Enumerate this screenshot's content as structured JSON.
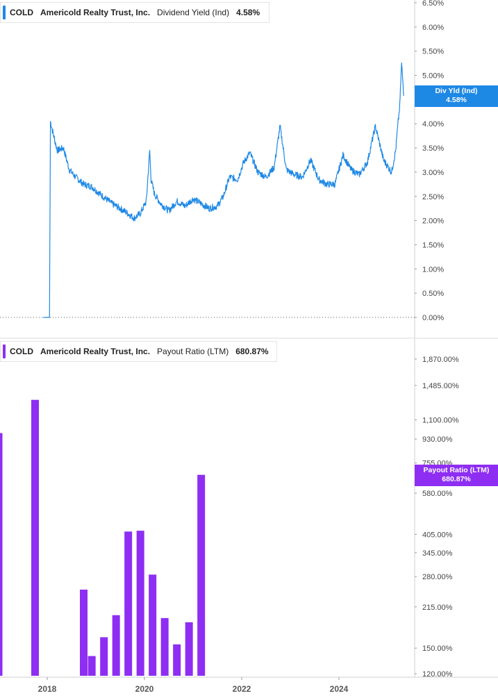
{
  "top_legend": {
    "ticker": "COLD",
    "company": "Americold Realty Trust, Inc.",
    "metric": "Dividend Yield (Ind)",
    "value": "4.58%",
    "color": "#1e88e5"
  },
  "bottom_legend": {
    "ticker": "COLD",
    "company": "Americold Realty Trust, Inc.",
    "metric": "Payout Ratio (LTM)",
    "value": "680.87%",
    "color": "#8e2ef2"
  },
  "top_badge": {
    "line1": "Div Yld (Ind)",
    "line2": "4.58%"
  },
  "bottom_badge": {
    "line1": "Payout Ratio (LTM)",
    "line2": "680.87%"
  },
  "chart_data": [
    {
      "type": "line",
      "series": [
        {
          "name": "Dividend Yield (Ind)",
          "x": [
            "2017-12-01",
            "2018-01-10",
            "2018-01-18",
            "2018-01-25",
            "2018-02-15",
            "2018-03-15",
            "2018-05-01",
            "2018-06-15",
            "2018-08-01",
            "2018-10-01",
            "2018-12-01",
            "2019-02-01",
            "2019-05-01",
            "2019-08-01",
            "2019-10-15",
            "2019-12-01",
            "2020-01-15",
            "2020-02-10",
            "2020-02-20",
            "2020-03-15",
            "2020-05-01",
            "2020-07-01",
            "2020-09-01",
            "2020-11-01",
            "2021-01-01",
            "2021-03-01",
            "2021-05-01",
            "2021-07-01",
            "2021-08-15",
            "2021-10-01",
            "2021-12-01",
            "2022-01-15",
            "2022-03-01",
            "2022-05-01",
            "2022-07-01",
            "2022-09-01",
            "2022-10-15",
            "2022-12-01",
            "2023-02-01",
            "2023-04-01",
            "2023-06-01",
            "2023-08-01",
            "2023-10-01",
            "2023-12-01",
            "2024-02-01",
            "2024-04-01",
            "2024-06-01",
            "2024-08-01",
            "2024-10-01",
            "2024-12-01",
            "2025-02-01",
            "2025-03-01",
            "2025-03-20",
            "2025-04-01",
            "2025-04-15",
            "2025-05-01"
          ],
          "values": [
            0.0,
            0.0,
            0.0,
            4.05,
            3.8,
            3.45,
            3.5,
            3.05,
            2.9,
            2.75,
            2.7,
            2.55,
            2.35,
            2.2,
            2.05,
            2.15,
            2.4,
            3.45,
            2.85,
            2.55,
            2.35,
            2.2,
            2.4,
            2.3,
            2.45,
            2.35,
            2.25,
            2.3,
            2.5,
            2.9,
            2.85,
            3.2,
            3.4,
            3.0,
            2.9,
            3.1,
            3.95,
            3.05,
            2.95,
            2.9,
            3.25,
            2.85,
            2.75,
            2.75,
            3.35,
            3.05,
            2.95,
            3.2,
            3.95,
            3.25,
            3.0,
            3.45,
            4.05,
            4.35,
            5.25,
            4.58
          ]
        }
      ],
      "ytick_labels": [
        "0.00%",
        "0.50%",
        "1.00%",
        "1.50%",
        "2.00%",
        "2.50%",
        "3.00%",
        "3.50%",
        "4.00%",
        "4.50%",
        "5.00%",
        "5.50%",
        "6.00%",
        "6.50%"
      ],
      "ylim": [
        0,
        6.5
      ]
    },
    {
      "type": "bar",
      "x": [
        "2017-01",
        "2017-10",
        "2018-10",
        "2018-12",
        "2019-03",
        "2019-06",
        "2019-09",
        "2019-12",
        "2020-03",
        "2020-06",
        "2020-09",
        "2020-12",
        "2021-03"
      ],
      "values": [
        980,
        1310,
        250,
        140,
        165,
        200,
        415,
        418,
        285,
        195,
        155,
        188,
        680.87
      ],
      "ytick_labels": [
        "120.00%",
        "150.00%",
        "215.00%",
        "280.00%",
        "345.00%",
        "405.00%",
        "580.00%",
        "755.00%",
        "930.00%",
        "1,100.00%",
        "1,485.00%",
        "1,870.00%"
      ],
      "ytick_values": [
        120,
        150,
        215,
        280,
        345,
        405,
        580,
        755,
        930,
        1100,
        1485,
        1870
      ],
      "scale": "log"
    }
  ],
  "x_axis": {
    "tick_labels": [
      "2018",
      "2020",
      "2022",
      "2024"
    ]
  }
}
